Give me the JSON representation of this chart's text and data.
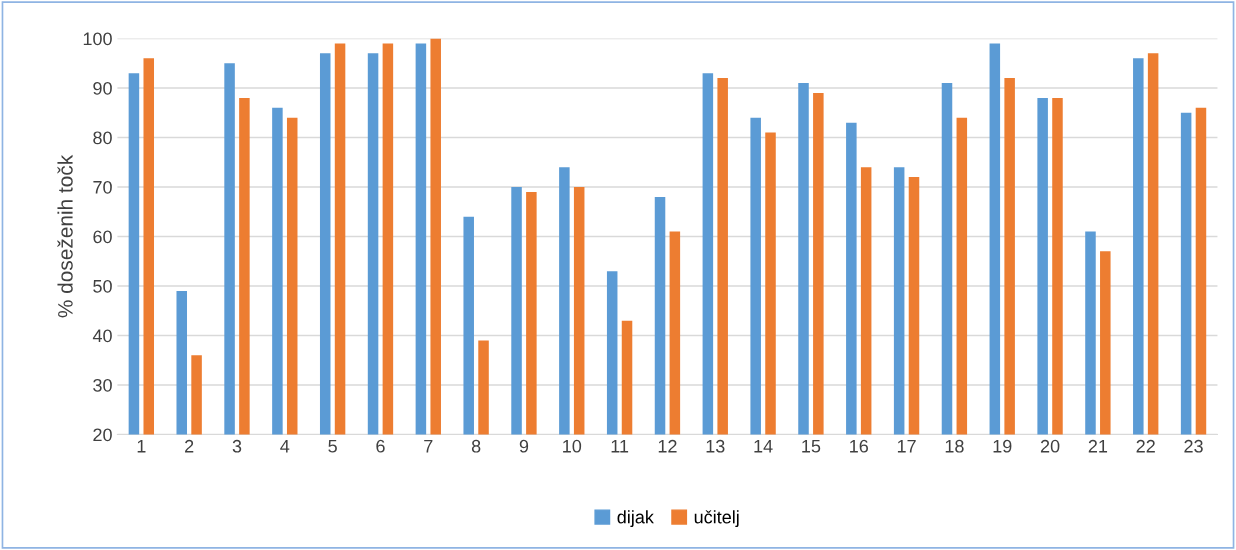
{
  "chart_data": {
    "type": "bar",
    "ylabel": "% doseženih točk",
    "categories": [
      "1",
      "2",
      "3",
      "4",
      "5",
      "6",
      "7",
      "8",
      "9",
      "10",
      "11",
      "12",
      "13",
      "14",
      "15",
      "16",
      "17",
      "18",
      "19",
      "20",
      "21",
      "22",
      "23"
    ],
    "series": [
      {
        "name": "dijak",
        "color": "#5b9bd5",
        "values": [
          93,
          49,
          95,
          86,
          97,
          97,
          99,
          64,
          70,
          74,
          53,
          68,
          93,
          84,
          91,
          83,
          74,
          91,
          99,
          88,
          61,
          96,
          85
        ]
      },
      {
        "name": "učitelj",
        "color": "#ed7d31",
        "values": [
          96,
          36,
          88,
          84,
          99,
          99,
          100,
          39,
          69,
          70,
          43,
          61,
          92,
          81,
          89,
          74,
          72,
          84,
          92,
          88,
          57,
          97,
          86
        ]
      }
    ],
    "ylim": [
      20,
      100
    ],
    "yticks": [
      20,
      30,
      40,
      50,
      60,
      70,
      80,
      90,
      100
    ],
    "grid": "y",
    "legend": "bottom"
  }
}
